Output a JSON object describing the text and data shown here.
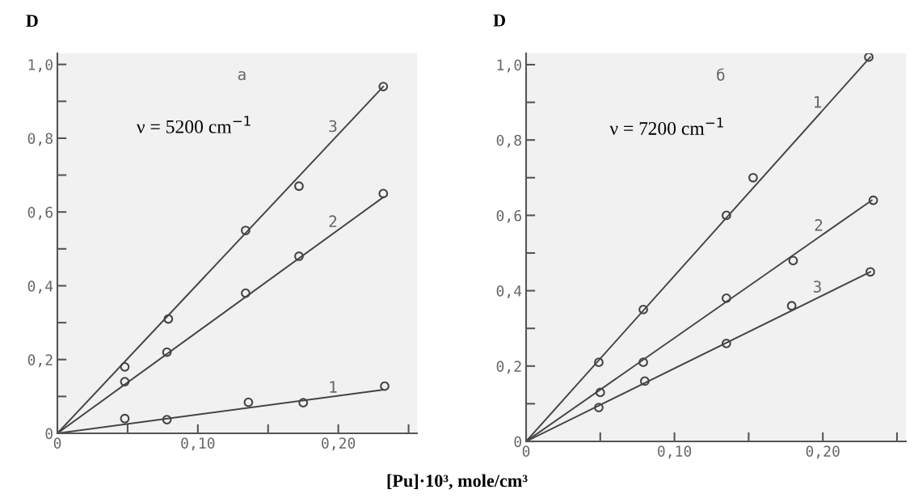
{
  "chart_data": [
    {
      "type": "scatter",
      "xlabel": "[Pu]·10³, mole/cm³",
      "ylabel": "D",
      "annotations": [
        "a",
        "ν = 5200 cm$^{−1}$"
      ],
      "xlim": [
        0,
        0.256
      ],
      "ylim": [
        0,
        1.03
      ],
      "xticks": [
        0,
        {
          "value": 0.05,
          "label": null
        },
        {
          "value": 0.1,
          "label": "0,10"
        },
        {
          "value": 0.15,
          "label": null
        },
        {
          "value": 0.2,
          "label": "0,20"
        },
        {
          "value": 0.25,
          "label": null
        }
      ],
      "yticks": [
        0,
        {
          "value": 0.1,
          "label": null
        },
        {
          "value": 0.2,
          "label": "0,2"
        },
        {
          "value": 0.3,
          "label": null
        },
        {
          "value": 0.4,
          "label": "0,4"
        },
        {
          "value": 0.5,
          "label": null
        },
        {
          "value": 0.6,
          "label": "0,6"
        },
        {
          "value": 0.7,
          "label": null
        },
        {
          "value": 0.8,
          "label": "0,8"
        },
        {
          "value": 0.9,
          "label": null
        },
        {
          "value": 1.0,
          "label": "1,0"
        }
      ],
      "grid": false,
      "legend": false,
      "marker": "circle",
      "series": [
        {
          "type": "line",
          "marker": "none",
          "name": "3",
          "color": "#444444",
          "x": [
            0,
            0.232
          ],
          "values": [
            0,
            0.94
          ]
        },
        {
          "type": "line",
          "marker": "none",
          "name": "2",
          "color": "#444444",
          "x": [
            0,
            0.232
          ],
          "values": [
            0,
            0.64
          ]
        },
        {
          "type": "line",
          "marker": "none",
          "name": "1",
          "color": "#444444",
          "x": [
            0,
            0.232
          ],
          "values": [
            0,
            0.118
          ]
        },
        {
          "color": "#444444",
          "x": [
            0.048,
            0.079,
            0.134,
            0.172,
            0.232
          ],
          "values": [
            0.18,
            0.31,
            0.55,
            0.67,
            0.94
          ]
        },
        {
          "color": "#444444",
          "x": [
            0.048,
            0.078,
            0.134,
            0.172,
            0.232
          ],
          "values": [
            0.14,
            0.22,
            0.38,
            0.48,
            0.65
          ]
        },
        {
          "color": "#444444",
          "x": [
            0.048,
            0.078,
            0.136,
            0.175,
            0.233
          ],
          "values": [
            0.04,
            0.037,
            0.084,
            0.083,
            0.128
          ]
        }
      ]
    },
    {
      "type": "scatter",
      "ylabel": "D",
      "annotations": [
        "б",
        "ν = 7200 cm$^{−1}$"
      ],
      "xlim": [
        0,
        0.256
      ],
      "ylim": [
        0,
        1.03
      ],
      "xticks": [
        0,
        {
          "value": 0.05,
          "label": null
        },
        {
          "value": 0.1,
          "label": "0,10"
        },
        {
          "value": 0.15,
          "label": null
        },
        {
          "value": 0.2,
          "label": "0,20"
        },
        {
          "value": 0.25,
          "label": null
        }
      ],
      "yticks": [
        0,
        {
          "value": 0.1,
          "label": null
        },
        {
          "value": 0.2,
          "label": "0,2"
        },
        {
          "value": 0.3,
          "label": null
        },
        {
          "value": 0.4,
          "label": "0,4"
        },
        {
          "value": 0.5,
          "label": null
        },
        {
          "value": 0.6,
          "label": "0,6"
        },
        {
          "value": 0.7,
          "label": null
        },
        {
          "value": 0.8,
          "label": "0,8"
        },
        {
          "value": 0.9,
          "label": null
        },
        {
          "value": 1.0,
          "label": "1,0"
        }
      ],
      "grid": false,
      "legend": false,
      "marker": "circle",
      "series": [
        {
          "type": "line",
          "marker": "none",
          "name": "1",
          "color": "#444444",
          "x": [
            0,
            0.232
          ],
          "values": [
            0,
            1.02
          ]
        },
        {
          "type": "line",
          "marker": "none",
          "name": "2",
          "color": "#444444",
          "x": [
            0,
            0.233
          ],
          "values": [
            0,
            0.64
          ]
        },
        {
          "type": "line",
          "marker": "none",
          "name": "3",
          "color": "#444444",
          "x": [
            0,
            0.232
          ],
          "values": [
            0,
            0.45
          ]
        },
        {
          "color": "#444444",
          "x": [
            0.049,
            0.079,
            0.135,
            0.153,
            0.231
          ],
          "values": [
            0.21,
            0.35,
            0.6,
            0.7,
            1.02
          ]
        },
        {
          "color": "#444444",
          "x": [
            0.05,
            0.079,
            0.135,
            0.18,
            0.234
          ],
          "values": [
            0.13,
            0.21,
            0.38,
            0.48,
            0.64
          ]
        },
        {
          "color": "#444444",
          "x": [
            0.049,
            0.08,
            0.135,
            0.179,
            0.232
          ],
          "values": [
            0.09,
            0.16,
            0.26,
            0.36,
            0.45
          ]
        }
      ]
    }
  ]
}
